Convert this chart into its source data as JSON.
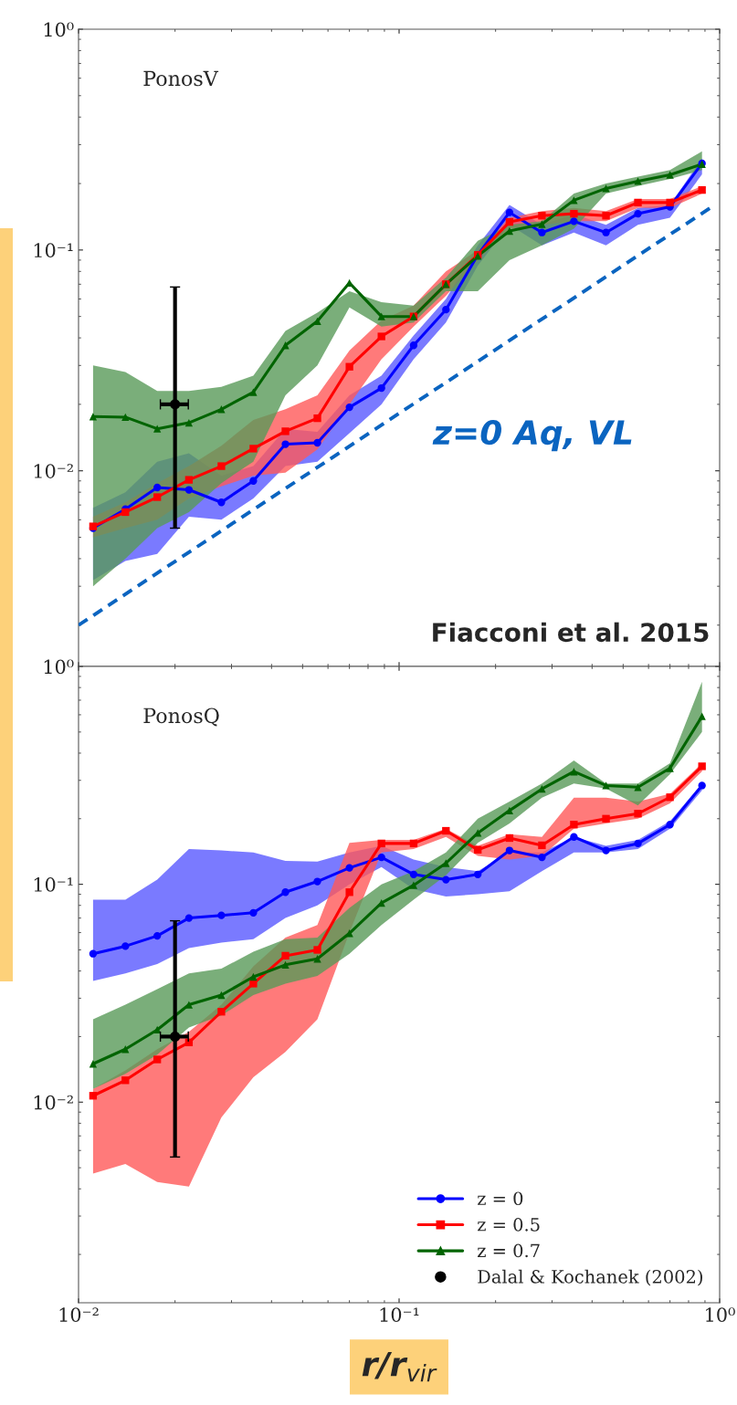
{
  "chart_data": [
    {
      "type": "line",
      "annotations": [
        "PonosV",
        "Fiacconi et al. 2015"
      ],
      "xlim": [
        0.01,
        1
      ],
      "ylim": [
        0.0013,
        1
      ],
      "log": "xy",
      "tick_labels": "y",
      "legend": false,
      "line_style": "solid",
      "xticks": [
        {
          "value": 0.01,
          "label": null
        },
        {
          "value": 0.1,
          "label": null
        },
        {
          "value": 1,
          "label": null
        }
      ],
      "yticks": [
        {
          "value": 0.01,
          "label": "10⁻²"
        },
        {
          "value": 0.1,
          "label": "10⁻¹"
        },
        {
          "value": 1,
          "label": "10⁰"
        }
      ],
      "x": [
        0.0111,
        0.014,
        0.0176,
        0.0221,
        0.0279,
        0.0351,
        0.0442,
        0.0556,
        0.07,
        0.0881,
        0.111,
        0.14,
        0.176,
        0.221,
        0.279,
        0.351,
        0.442,
        0.556,
        0.7,
        0.881
      ],
      "series": [
        {
          "color": "#0000ff",
          "marker": "circle",
          "values": [
            0.0055,
            0.0067,
            0.0084,
            0.0082,
            0.0072,
            0.009,
            0.0132,
            0.0134,
            0.0194,
            0.0237,
            0.037,
            0.0537,
            0.095,
            0.148,
            0.12,
            0.135,
            0.12,
            0.146,
            0.157,
            0.247
          ],
          "lower": [
            0.0032,
            0.0039,
            0.0042,
            0.0062,
            0.006,
            0.0075,
            0.0105,
            0.011,
            0.0148,
            0.02,
            0.032,
            0.047,
            0.085,
            0.13,
            0.105,
            0.12,
            0.105,
            0.13,
            0.14,
            0.22
          ],
          "upper": [
            0.0068,
            0.008,
            0.011,
            0.012,
            0.0095,
            0.0105,
            0.0155,
            0.015,
            0.022,
            0.027,
            0.041,
            0.06,
            0.105,
            0.16,
            0.13,
            0.145,
            0.13,
            0.155,
            0.16,
            0.26
          ]
        },
        {
          "color": "#ff0000",
          "marker": "square",
          "values": [
            0.0056,
            0.0065,
            0.0076,
            0.0091,
            0.0105,
            0.0126,
            0.0151,
            0.0173,
            0.0296,
            0.0406,
            0.05,
            0.07,
            0.095,
            0.134,
            0.143,
            0.146,
            0.143,
            0.164,
            0.164,
            0.187
          ],
          "lower": [
            0.005,
            0.0055,
            0.006,
            0.0075,
            0.0085,
            0.0095,
            0.0098,
            0.0125,
            0.02,
            0.032,
            0.045,
            0.062,
            0.09,
            0.125,
            0.13,
            0.135,
            0.135,
            0.155,
            0.155,
            0.18
          ],
          "upper": [
            0.0062,
            0.0072,
            0.0088,
            0.0105,
            0.013,
            0.017,
            0.019,
            0.022,
            0.035,
            0.048,
            0.056,
            0.08,
            0.1,
            0.14,
            0.15,
            0.155,
            0.15,
            0.17,
            0.17,
            0.195
          ]
        },
        {
          "color": "#006400",
          "marker": "triangle",
          "values": [
            0.0176,
            0.0175,
            0.0155,
            0.0165,
            0.019,
            0.0227,
            0.037,
            0.0476,
            0.071,
            0.05,
            0.05,
            0.07,
            0.094,
            0.122,
            0.131,
            0.168,
            0.19,
            0.205,
            0.219,
            0.245
          ],
          "lower": [
            0.003,
            0.004,
            0.0055,
            0.0065,
            0.0088,
            0.011,
            0.022,
            0.03,
            0.055,
            0.045,
            0.047,
            0.065,
            0.065,
            0.09,
            0.105,
            0.125,
            0.18,
            0.195,
            0.21,
            0.23
          ],
          "upper": [
            0.03,
            0.028,
            0.023,
            0.023,
            0.024,
            0.027,
            0.043,
            0.052,
            0.065,
            0.058,
            0.056,
            0.075,
            0.11,
            0.13,
            0.135,
            0.18,
            0.2,
            0.215,
            0.23,
            0.28
          ]
        },
        {
          "type": "scatter",
          "color": "#000000",
          "marker": "circle",
          "x": [
            0.02
          ],
          "values": [
            0.02
          ],
          "errors": [
            [
              0.0055,
              0.068
            ]
          ],
          "xerrors": [
            [
              0.018,
              0.022
            ]
          ]
        },
        {
          "type": "line",
          "name": "z=0 Aq, VL",
          "color": "#0a64c0",
          "marker": "none",
          "line_style": "dashed",
          "x": [
            0.01,
            0.94
          ],
          "values": [
            0.002,
            0.156
          ]
        }
      ]
    },
    {
      "type": "line",
      "annotations": [
        "PonosQ"
      ],
      "xlabel": "r/r$_{vir}$",
      "xlim": [
        0.01,
        1
      ],
      "ylim": [
        0.0012,
        1
      ],
      "log": "xy",
      "legend": "lower right",
      "line_style": "solid",
      "xticks": [
        {
          "value": 0.01,
          "label": "10⁻²"
        },
        {
          "value": 0.1,
          "label": "10⁻¹"
        },
        {
          "value": 1,
          "label": "10⁰"
        }
      ],
      "yticks": [
        {
          "value": 0.01,
          "label": "10⁻²"
        },
        {
          "value": 0.1,
          "label": "10⁻¹"
        },
        {
          "value": 1,
          "label": "10⁰"
        }
      ],
      "x": [
        0.0111,
        0.014,
        0.0176,
        0.0221,
        0.0279,
        0.0351,
        0.0442,
        0.0556,
        0.07,
        0.0881,
        0.111,
        0.14,
        0.176,
        0.221,
        0.279,
        0.351,
        0.442,
        0.556,
        0.7,
        0.881
      ],
      "series": [
        {
          "name": "z = 0",
          "color": "#0000ff",
          "marker": "circle",
          "values": [
            0.048,
            0.052,
            0.058,
            0.07,
            0.072,
            0.074,
            0.092,
            0.103,
            0.119,
            0.133,
            0.111,
            0.105,
            0.111,
            0.143,
            0.133,
            0.165,
            0.143,
            0.154,
            0.188,
            0.284
          ],
          "lower": [
            0.036,
            0.039,
            0.043,
            0.051,
            0.054,
            0.056,
            0.07,
            0.08,
            0.1,
            0.12,
            0.095,
            0.088,
            0.09,
            0.093,
            0.115,
            0.14,
            0.14,
            0.145,
            0.18,
            0.27
          ],
          "upper": [
            0.085,
            0.085,
            0.105,
            0.145,
            0.143,
            0.14,
            0.128,
            0.127,
            0.14,
            0.15,
            0.13,
            0.12,
            0.115,
            0.14,
            0.14,
            0.165,
            0.15,
            0.16,
            0.195,
            0.29
          ]
        },
        {
          "name": "z = 0.5",
          "color": "#ff0000",
          "marker": "square",
          "values": [
            0.0107,
            0.0126,
            0.0157,
            0.0188,
            0.026,
            0.035,
            0.047,
            0.05,
            0.092,
            0.154,
            0.154,
            0.176,
            0.144,
            0.163,
            0.151,
            0.188,
            0.2,
            0.211,
            0.251,
            0.348
          ],
          "lower": [
            0.0047,
            0.0052,
            0.0043,
            0.0041,
            0.0085,
            0.013,
            0.017,
            0.024,
            0.06,
            0.14,
            0.145,
            0.165,
            0.135,
            0.13,
            0.135,
            0.18,
            0.19,
            0.2,
            0.235,
            0.33
          ],
          "upper": [
            0.0115,
            0.014,
            0.0175,
            0.021,
            0.028,
            0.042,
            0.057,
            0.065,
            0.155,
            0.16,
            0.16,
            0.18,
            0.15,
            0.17,
            0.165,
            0.25,
            0.25,
            0.24,
            0.26,
            0.36
          ]
        },
        {
          "name": "z = 0.7",
          "color": "#006400",
          "marker": "triangle",
          "values": [
            0.015,
            0.0175,
            0.0215,
            0.028,
            0.031,
            0.0376,
            0.0427,
            0.0455,
            0.0596,
            0.082,
            0.099,
            0.125,
            0.172,
            0.218,
            0.274,
            0.329,
            0.284,
            0.279,
            0.341,
            0.59
          ],
          "lower": [
            0.0115,
            0.0135,
            0.0165,
            0.022,
            0.025,
            0.031,
            0.035,
            0.038,
            0.048,
            0.065,
            0.085,
            0.11,
            0.155,
            0.19,
            0.25,
            0.29,
            0.275,
            0.23,
            0.32,
            0.5
          ],
          "upper": [
            0.024,
            0.028,
            0.033,
            0.039,
            0.041,
            0.049,
            0.056,
            0.057,
            0.078,
            0.1,
            0.115,
            0.14,
            0.2,
            0.24,
            0.29,
            0.37,
            0.29,
            0.29,
            0.36,
            0.85
          ]
        },
        {
          "type": "scatter",
          "name": "Dalal & Kochanek (2002)",
          "color": "#000000",
          "marker": "circle",
          "x": [
            0.02
          ],
          "values": [
            0.02
          ],
          "errors": [
            [
              0.0056,
              0.068
            ]
          ],
          "xerrors": [
            [
              0.018,
              0.022
            ]
          ]
        }
      ]
    }
  ]
}
